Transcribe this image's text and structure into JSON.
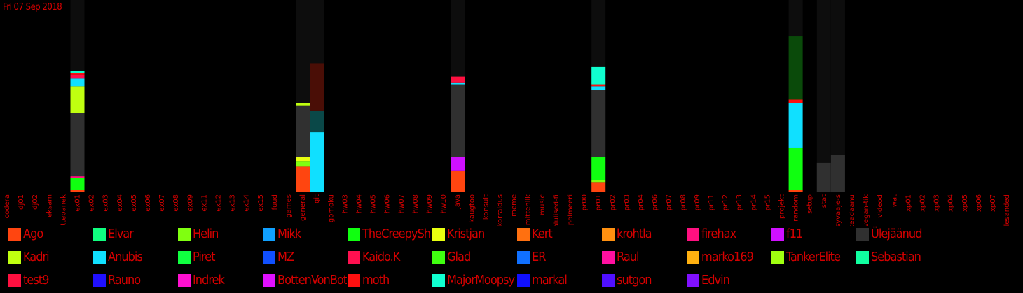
{
  "date": "Fri 07 Sep 2018",
  "chart_data": {
    "type": "bar",
    "stacked": true,
    "categories": [
      "codera",
      "dj01",
      "dj02",
      "eksam",
      "ettepanek",
      "ex01",
      "ex02",
      "ex03",
      "ex04",
      "ex05",
      "ex06",
      "ex07",
      "ex08",
      "ex09",
      "ex11",
      "ex12",
      "ex13",
      "ex14",
      "ex15",
      "fuud",
      "games",
      "general",
      "git",
      "gomoku",
      "hw03",
      "hw04",
      "hw05",
      "hw06",
      "hw07",
      "hw08",
      "hw09",
      "hw10",
      "java",
      "kaugtöö",
      "konsult",
      "korraldus",
      "meme",
      "mitteniik",
      "music",
      "olulised-fi",
      "polmeeri",
      "pr00",
      "pr01",
      "pr02",
      "pr03",
      "pr04",
      "pr06",
      "pr07",
      "pr08",
      "pr09",
      "pr11",
      "pr12",
      "pr13",
      "pr14",
      "pr15",
      "projekt",
      "random",
      "setup",
      "stat",
      "syvaaje-s",
      "teadaanu",
      "vegan-tik",
      "videod",
      "wat",
      "xp01",
      "xp02",
      "xp03",
      "xp04",
      "xp05",
      "xp06",
      "xp07",
      "ülesanded"
    ],
    "ylim": [
      0,
      100
    ],
    "series": [
      {
        "name": "Ago",
        "color": "#ff4510",
        "values": {
          "ex01": 1,
          "general": 13,
          "java": 11,
          "pr01": 5,
          "random": 1
        }
      },
      {
        "name": "Elvar",
        "color": "#10ff80",
        "values": {}
      },
      {
        "name": "Helin",
        "color": "#80ff10",
        "values": {
          "general": 3,
          "pr01": 1
        }
      },
      {
        "name": "Mikk",
        "color": "#10a0ff",
        "values": {}
      },
      {
        "name": "TheCreepySh",
        "color": "#10ff10",
        "values": {
          "ex01": 6,
          "pr01": 12,
          "random": 22
        }
      },
      {
        "name": "Kristjan",
        "color": "#e8ff10",
        "values": {
          "general": 2
        }
      },
      {
        "name": "Kert",
        "color": "#ff7010",
        "values": {}
      },
      {
        "name": "krohtla",
        "color": "#ff9010",
        "values": {}
      },
      {
        "name": "firehax",
        "color": "#ff1080",
        "values": {
          "ex01": 1
        }
      },
      {
        "name": "f11",
        "color": "#d010ff",
        "values": {
          "java": 7
        }
      },
      {
        "name": "Ülejäänud",
        "color": "#303030",
        "values": {
          "ex01": 33,
          "general": 27,
          "java": 38,
          "pr01": 35,
          "random": 0
        }
      },
      {
        "name": "Kadri",
        "color": "#c0ff10",
        "values": {
          "ex01": 14,
          "general": 1
        }
      },
      {
        "name": "Anubis",
        "color": "#10e0ff",
        "values": {
          "ex01": 4,
          "git": 31,
          "java": 1,
          "pr01": 2,
          "random": 23
        }
      },
      {
        "name": "Piret",
        "color": "#10ff40",
        "values": {}
      },
      {
        "name": "MZ",
        "color": "#1050ff",
        "values": {}
      },
      {
        "name": "Kaido.K",
        "color": "#ff1050",
        "values": {
          "ex01": 2
        }
      },
      {
        "name": "Glad",
        "color": "#40ff10",
        "values": {}
      },
      {
        "name": "ER",
        "color": "#1070ff",
        "values": {}
      },
      {
        "name": "Raul",
        "color": "#ff10a0",
        "values": {}
      },
      {
        "name": "marko169",
        "color": "#ffb010",
        "values": {}
      },
      {
        "name": "TankerElite",
        "color": "#a0ff10",
        "values": {}
      },
      {
        "name": "Sebastian",
        "color": "#10ffa0",
        "values": {}
      },
      {
        "name": "test9",
        "color": "#ff1040",
        "values": {
          "java": 3
        }
      },
      {
        "name": "Rauno",
        "color": "#2010ff",
        "values": {}
      },
      {
        "name": "Indrek",
        "color": "#ff10d0",
        "values": {}
      },
      {
        "name": "BottenVonBot",
        "color": "#e010ff",
        "values": {}
      },
      {
        "name": "moth",
        "color": "#ff1010",
        "values": {
          "ex01": 1,
          "pr01": 1,
          "random": 2
        }
      },
      {
        "name": "MajorMoopsy",
        "color": "#10ffd0",
        "values": {
          "ex01": 1,
          "pr01": 9
        }
      },
      {
        "name": "markal",
        "color": "#1010ff",
        "values": {}
      },
      {
        "name": "sutgon",
        "color": "#5010ff",
        "values": {}
      },
      {
        "name": "Edvin",
        "color": "#8010ff",
        "values": {}
      }
    ],
    "legend": [
      "Ago",
      "Elvar",
      "Helin",
      "Mikk",
      "TheCreepySh",
      "Kristjan",
      "Kert",
      "krohtla",
      "firehax",
      "f11",
      "Ülejäänud",
      "Kadri",
      "Anubis",
      "Piret",
      "MZ",
      "Kaido.K",
      "Glad",
      "ER",
      "Raul",
      "marko169",
      "TankerElite",
      "Sebastian",
      "test9",
      "Rauno",
      "Indrek",
      "BottenVonBot",
      "moth",
      "MajorMoopsy",
      "markal",
      "sutgon",
      "Edvin"
    ],
    "background_totals": {
      "ex01": 100,
      "general": 100,
      "git": 100,
      "java": 100,
      "pr01": 100,
      "random": 100,
      "stat": 100,
      "syvaaje-s": 100
    },
    "dark_segments": [
      {
        "category": "git",
        "values": [
          11,
          25
        ]
      },
      {
        "category": "random",
        "values": [
          33
        ]
      },
      {
        "category": "stat",
        "values": [
          15
        ]
      },
      {
        "category": "syvaaje-s",
        "values": [
          19
        ]
      }
    ],
    "dark_colors": [
      "#0a4848",
      "#4a0e06",
      "#0a4a0a",
      "#303030"
    ]
  }
}
